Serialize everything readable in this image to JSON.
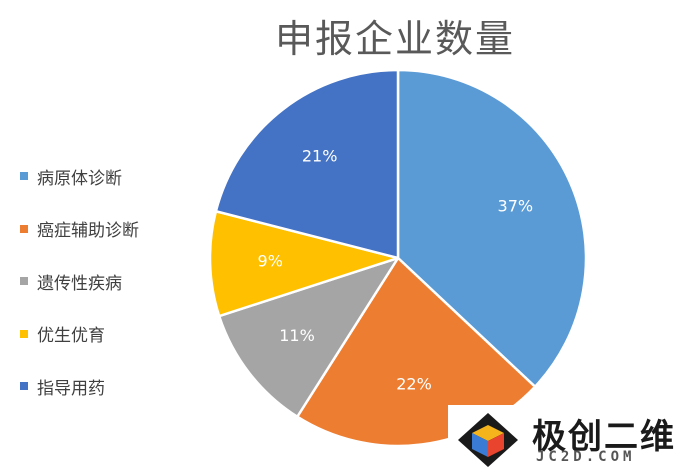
{
  "chart_data": {
    "type": "pie",
    "title": "申报企业数量",
    "categories": [
      "病原体诊断",
      "癌症辅助诊断",
      "遗传性疾病",
      "优生优育",
      "指导用药"
    ],
    "values": [
      37,
      22,
      11,
      9,
      21
    ],
    "labels": [
      "37%",
      "22%",
      "11%",
      "9%",
      "21%"
    ],
    "colors": [
      "#5B9BD5",
      "#ED7D31",
      "#A5A5A5",
      "#FFC000",
      "#4472C4"
    ],
    "legend_position": "left"
  },
  "watermark": {
    "brand": "极创二维",
    "domain": "JC2D.COM"
  }
}
